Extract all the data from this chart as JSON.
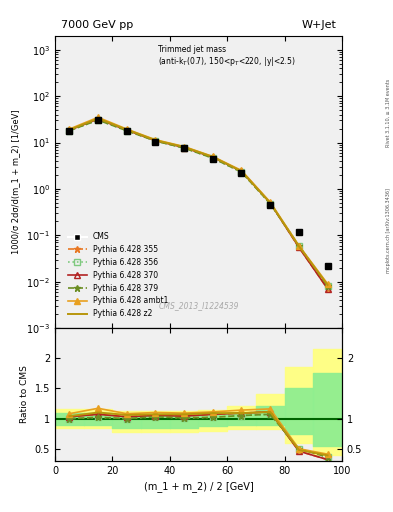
{
  "title_top": "7000 GeV pp",
  "title_right": "W+Jet",
  "watermark": "CMS_2013_I1224539",
  "rivet_label": "Rivet 3.1.10, ≥ 3.1M events",
  "mcplots_label": "mcplots.cern.ch [arXiv:1306.3436]",
  "xlabel": "(m_1 + m_2) / 2 [GeV]",
  "ylabel_main": "1000/σ 2dσ/d(m_1 + m_2) [1/GeV]",
  "ylabel_ratio": "Ratio to CMS",
  "x_data": [
    5,
    15,
    25,
    35,
    45,
    55,
    65,
    75,
    85,
    95
  ],
  "cms_data": [
    18.0,
    30.0,
    18.0,
    10.5,
    7.5,
    4.5,
    2.2,
    0.45,
    0.12,
    0.022
  ],
  "pythia355_data": [
    18.5,
    32.0,
    18.5,
    11.0,
    7.8,
    4.8,
    2.4,
    0.5,
    0.055,
    0.007
  ],
  "pythia356_data": [
    18.0,
    30.5,
    18.0,
    10.8,
    7.6,
    4.6,
    2.3,
    0.48,
    0.06,
    0.008
  ],
  "pythia370_data": [
    18.5,
    32.0,
    18.5,
    11.0,
    7.8,
    4.8,
    2.4,
    0.5,
    0.055,
    0.007
  ],
  "pythia379_data": [
    18.0,
    30.5,
    18.0,
    10.8,
    7.6,
    4.6,
    2.3,
    0.48,
    0.06,
    0.008
  ],
  "pythia_ambt1_data": [
    19.5,
    35.0,
    19.5,
    11.5,
    8.2,
    5.0,
    2.5,
    0.52,
    0.06,
    0.009
  ],
  "pythia_z2_data": [
    18.8,
    33.0,
    19.0,
    11.2,
    8.0,
    4.9,
    2.4,
    0.5,
    0.058,
    0.0085
  ],
  "ratio355": [
    1.03,
    1.07,
    1.03,
    1.05,
    1.04,
    1.07,
    1.09,
    1.11,
    0.46,
    0.32
  ],
  "ratio356": [
    1.0,
    1.02,
    1.0,
    1.03,
    1.01,
    1.02,
    1.05,
    1.07,
    0.5,
    0.36
  ],
  "ratio370": [
    1.03,
    1.07,
    1.03,
    1.05,
    1.04,
    1.07,
    1.09,
    1.11,
    0.46,
    0.32
  ],
  "ratio379": [
    1.0,
    1.02,
    1.0,
    1.03,
    1.01,
    1.02,
    1.05,
    1.07,
    0.5,
    0.36
  ],
  "ratio_ambt1": [
    1.08,
    1.17,
    1.08,
    1.1,
    1.09,
    1.11,
    1.14,
    1.16,
    0.5,
    0.41
  ],
  "ratio_z2": [
    1.04,
    1.1,
    1.06,
    1.07,
    1.07,
    1.09,
    1.09,
    1.11,
    0.48,
    0.39
  ],
  "band_x": [
    0,
    10,
    20,
    30,
    40,
    50,
    60,
    70,
    80,
    90,
    100
  ],
  "band_green_lo": [
    0.9,
    0.9,
    0.85,
    0.85,
    0.85,
    0.88,
    0.9,
    0.9,
    0.75,
    0.55,
    0.55
  ],
  "band_green_hi": [
    1.1,
    1.1,
    1.05,
    1.05,
    1.05,
    1.07,
    1.1,
    1.2,
    1.5,
    1.75,
    1.75
  ],
  "band_yellow_lo": [
    0.85,
    0.85,
    0.78,
    0.78,
    0.78,
    0.8,
    0.82,
    0.82,
    0.6,
    0.4,
    0.4
  ],
  "band_yellow_hi": [
    1.15,
    1.15,
    1.12,
    1.12,
    1.12,
    1.14,
    1.2,
    1.4,
    1.85,
    2.15,
    2.15
  ],
  "color_355": "#e87722",
  "color_356": "#7fc97f",
  "color_370": "#b22222",
  "color_379": "#6b8e23",
  "color_ambt1": "#e8a020",
  "color_z2": "#b8960c",
  "color_cms": "#000000",
  "xlim": [
    0,
    100
  ],
  "ylim_main": [
    0.001,
    2000.0
  ],
  "ylim_ratio": [
    0.3,
    2.5
  ],
  "background_color": "#f0f0f0"
}
